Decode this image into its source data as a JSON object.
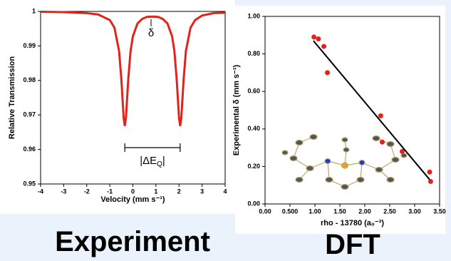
{
  "chart_data": [
    {
      "type": "line",
      "xlabel": "Velocity (mm s⁻¹)",
      "ylabel": "Relative Transmission",
      "caption": "Experiment",
      "annotations": [
        "δ"
      ],
      "quadrupole_label": {
        "main": "|ΔE",
        "sub": "Q",
        "end": "|"
      },
      "xlim": [
        -4,
        4
      ],
      "xticks": [
        -4,
        -3,
        -2,
        -1,
        0,
        1,
        2,
        3,
        4
      ],
      "ylim": [
        0.95,
        1
      ],
      "yticks": [
        0.95,
        0.96,
        0.97,
        0.98,
        0.99,
        1
      ],
      "series": [
        {
          "color": "#e2231a",
          "x": [
            -4,
            -3,
            -2,
            -1.5,
            -1,
            -0.8,
            -0.6,
            -0.5,
            -0.4,
            -0.35,
            -0.3,
            -0.2,
            -0.1,
            0,
            0.2,
            0.4,
            0.6,
            0.85,
            1.1,
            1.3,
            1.5,
            1.7,
            1.8,
            1.9,
            2.0,
            2.05,
            2.1,
            2.2,
            2.3,
            2.5,
            2.7,
            3,
            3.5,
            4
          ],
          "values": [
            0.9999,
            0.9998,
            0.9995,
            0.9991,
            0.9975,
            0.9953,
            0.9886,
            0.9804,
            0.9692,
            0.9668,
            0.9692,
            0.9803,
            0.9885,
            0.9928,
            0.9965,
            0.9978,
            0.9984,
            0.9985,
            0.9984,
            0.9978,
            0.9965,
            0.9928,
            0.9885,
            0.9803,
            0.9692,
            0.9668,
            0.9692,
            0.9803,
            0.9886,
            0.9953,
            0.9975,
            0.9988,
            0.9995,
            0.9996
          ]
        }
      ]
    },
    {
      "type": "scatter",
      "xlabel": "rho - 13780 (a₀⁻³)",
      "ylabel": "Experimental δ (mm s⁻¹)",
      "caption": "DFT",
      "xlim": [
        0,
        3.5
      ],
      "xticks": [
        {
          "value": 0,
          "label": "0.00"
        },
        {
          "value": 0.5,
          "label": "0.500"
        },
        {
          "value": 1,
          "label": "1.00"
        },
        {
          "value": 1.5,
          "label": "1.50"
        },
        {
          "value": 2,
          "label": "2.00"
        },
        {
          "value": 2.5,
          "label": "2.50"
        },
        {
          "value": 3,
          "label": "3.00"
        },
        {
          "value": 3.5,
          "label": "3.50"
        }
      ],
      "ylim": [
        0,
        1
      ],
      "yticks": [
        {
          "value": 0,
          "label": "0.00"
        },
        {
          "value": 0.2,
          "label": "0.20"
        },
        {
          "value": 0.4,
          "label": "0.40"
        },
        {
          "value": 0.6,
          "label": "0.60"
        },
        {
          "value": 0.8,
          "label": "0.80"
        },
        {
          "value": 1,
          "label": "1.00"
        }
      ],
      "series": [
        {
          "type": "scatter",
          "color": "#e2231a",
          "x": [
            0.98,
            1.07,
            1.18,
            1.25,
            2.32,
            2.35,
            2.75,
            3.3,
            3.32
          ],
          "values": [
            0.89,
            0.88,
            0.84,
            0.7,
            0.47,
            0.33,
            0.28,
            0.17,
            0.12
          ]
        },
        {
          "type": "line",
          "color": "#000000",
          "x": [
            0.97,
            3.3
          ],
          "values": [
            0.87,
            0.13
          ]
        }
      ]
    }
  ]
}
